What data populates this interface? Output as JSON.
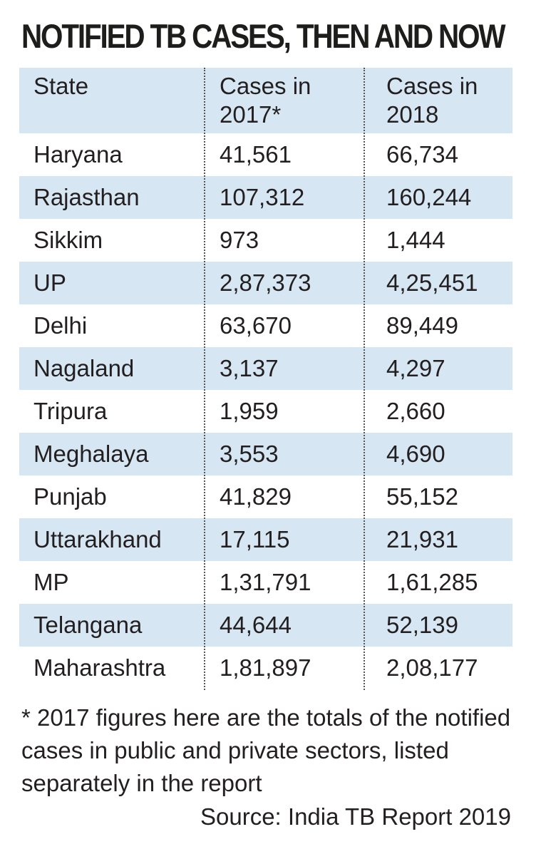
{
  "title": "NOTIFIED TB CASES, THEN AND NOW",
  "chart_data": {
    "type": "table",
    "title": "NOTIFIED TB CASES, THEN AND NOW",
    "columns": [
      "State",
      "Cases in 2017*",
      "Cases in 2018"
    ],
    "rows": [
      {
        "state": "Haryana",
        "cases_2017": "41,561",
        "cases_2018": "66,734"
      },
      {
        "state": "Rajasthan",
        "cases_2017": "107,312",
        "cases_2018": "160,244"
      },
      {
        "state": "Sikkim",
        "cases_2017": "973",
        "cases_2018": "1,444"
      },
      {
        "state": "UP",
        "cases_2017": "2,87,373",
        "cases_2018": "4,25,451"
      },
      {
        "state": "Delhi",
        "cases_2017": "63,670",
        "cases_2018": "89,449"
      },
      {
        "state": "Nagaland",
        "cases_2017": "3,137",
        "cases_2018": "4,297"
      },
      {
        "state": "Tripura",
        "cases_2017": "1,959",
        "cases_2018": "2,660"
      },
      {
        "state": "Meghalaya",
        "cases_2017": "3,553",
        "cases_2018": "4,690"
      },
      {
        "state": "Punjab",
        "cases_2017": "41,829",
        "cases_2018": "55,152"
      },
      {
        "state": "Uttarakhand",
        "cases_2017": "17,115",
        "cases_2018": "21,931"
      },
      {
        "state": "MP",
        "cases_2017": "1,31,791",
        "cases_2018": "1,61,285"
      },
      {
        "state": "Telangana",
        "cases_2017": "44,644",
        "cases_2018": "52,139"
      },
      {
        "state": "Maharashtra",
        "cases_2017": "1,81,897",
        "cases_2018": "2,08,177"
      }
    ],
    "footnote": "* 2017 figures here are the totals of the notified cases in public and private sectors, listed separately in the report",
    "source": "Source: India TB Report 2019"
  },
  "colors": {
    "header_background": "#d6e6f3",
    "shaded_row_background": "#d6e6f3",
    "text": "#231f20"
  }
}
